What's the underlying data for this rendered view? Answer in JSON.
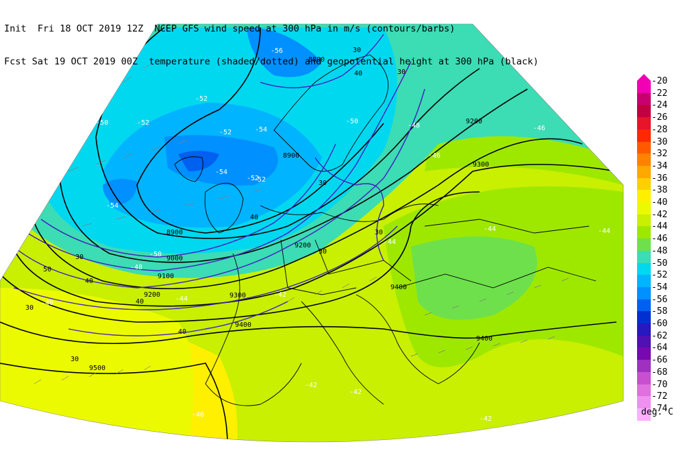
{
  "header": {
    "init_prefix": "Init",
    "init_time": "Fri 18 OCT 2019 12Z",
    "fcst_prefix": "Fcst",
    "fcst_time": "Sat 19 OCT 2019 00Z",
    "title_line1": "NCEP GFS wind speed at 300 hPa in m/s (contours/barbs)",
    "title_line2": "temperature (shaded/dotted) and geopotential height at 300 hPa (black)"
  },
  "colorbar": {
    "levels": [
      "-20",
      "-22",
      "-24",
      "-26",
      "-28",
      "-30",
      "-32",
      "-34",
      "-36",
      "-38",
      "-40",
      "-42",
      "-44",
      "-46",
      "-48",
      "-50",
      "-52",
      "-54",
      "-56",
      "-58",
      "-60",
      "-62",
      "-64",
      "-66",
      "-68",
      "-70",
      "-72",
      "-74"
    ],
    "colors": [
      "#f200b4",
      "#c8006e",
      "#c00040",
      "#e8142a",
      "#ff2800",
      "#ff5a00",
      "#ff8200",
      "#ffa800",
      "#ffd000",
      "#fff000",
      "#ecfa00",
      "#c8f000",
      "#9ee800",
      "#6ee04c",
      "#3cdcb4",
      "#00d8f0",
      "#00b4ff",
      "#0090ff",
      "#0060f0",
      "#0030d0",
      "#2818c0",
      "#5010b4",
      "#7808b0",
      "#a030c0",
      "#c850d0",
      "#e070e0",
      "#f090f0",
      "#ffb0ff"
    ],
    "unit": "deg. C"
  },
  "map": {
    "height_labels": [
      "8800",
      "8900",
      "8900",
      "9000",
      "9100",
      "9200",
      "9200",
      "9200",
      "9300",
      "9300",
      "9400",
      "9400",
      "9400",
      "9500"
    ],
    "wind_labels": [
      "30",
      "30",
      "30",
      "40",
      "40",
      "40",
      "50",
      "30",
      "40",
      "30",
      "30",
      "30",
      "40",
      "30"
    ],
    "temp_labels": [
      "-50",
      "-52",
      "-52",
      "-54",
      "-52",
      "-56",
      "-54",
      "-52",
      "-50",
      "-48",
      "-46",
      "-44",
      "-44",
      "-44",
      "-44",
      "-42",
      "-42",
      "-42",
      "-42",
      "-40",
      "-40",
      "-46",
      "-48",
      "-50",
      "-52",
      "-54"
    ],
    "colors": {
      "geopotential": "#000000",
      "wind_contour": "#4020c0",
      "boundaries": "#000000"
    }
  }
}
